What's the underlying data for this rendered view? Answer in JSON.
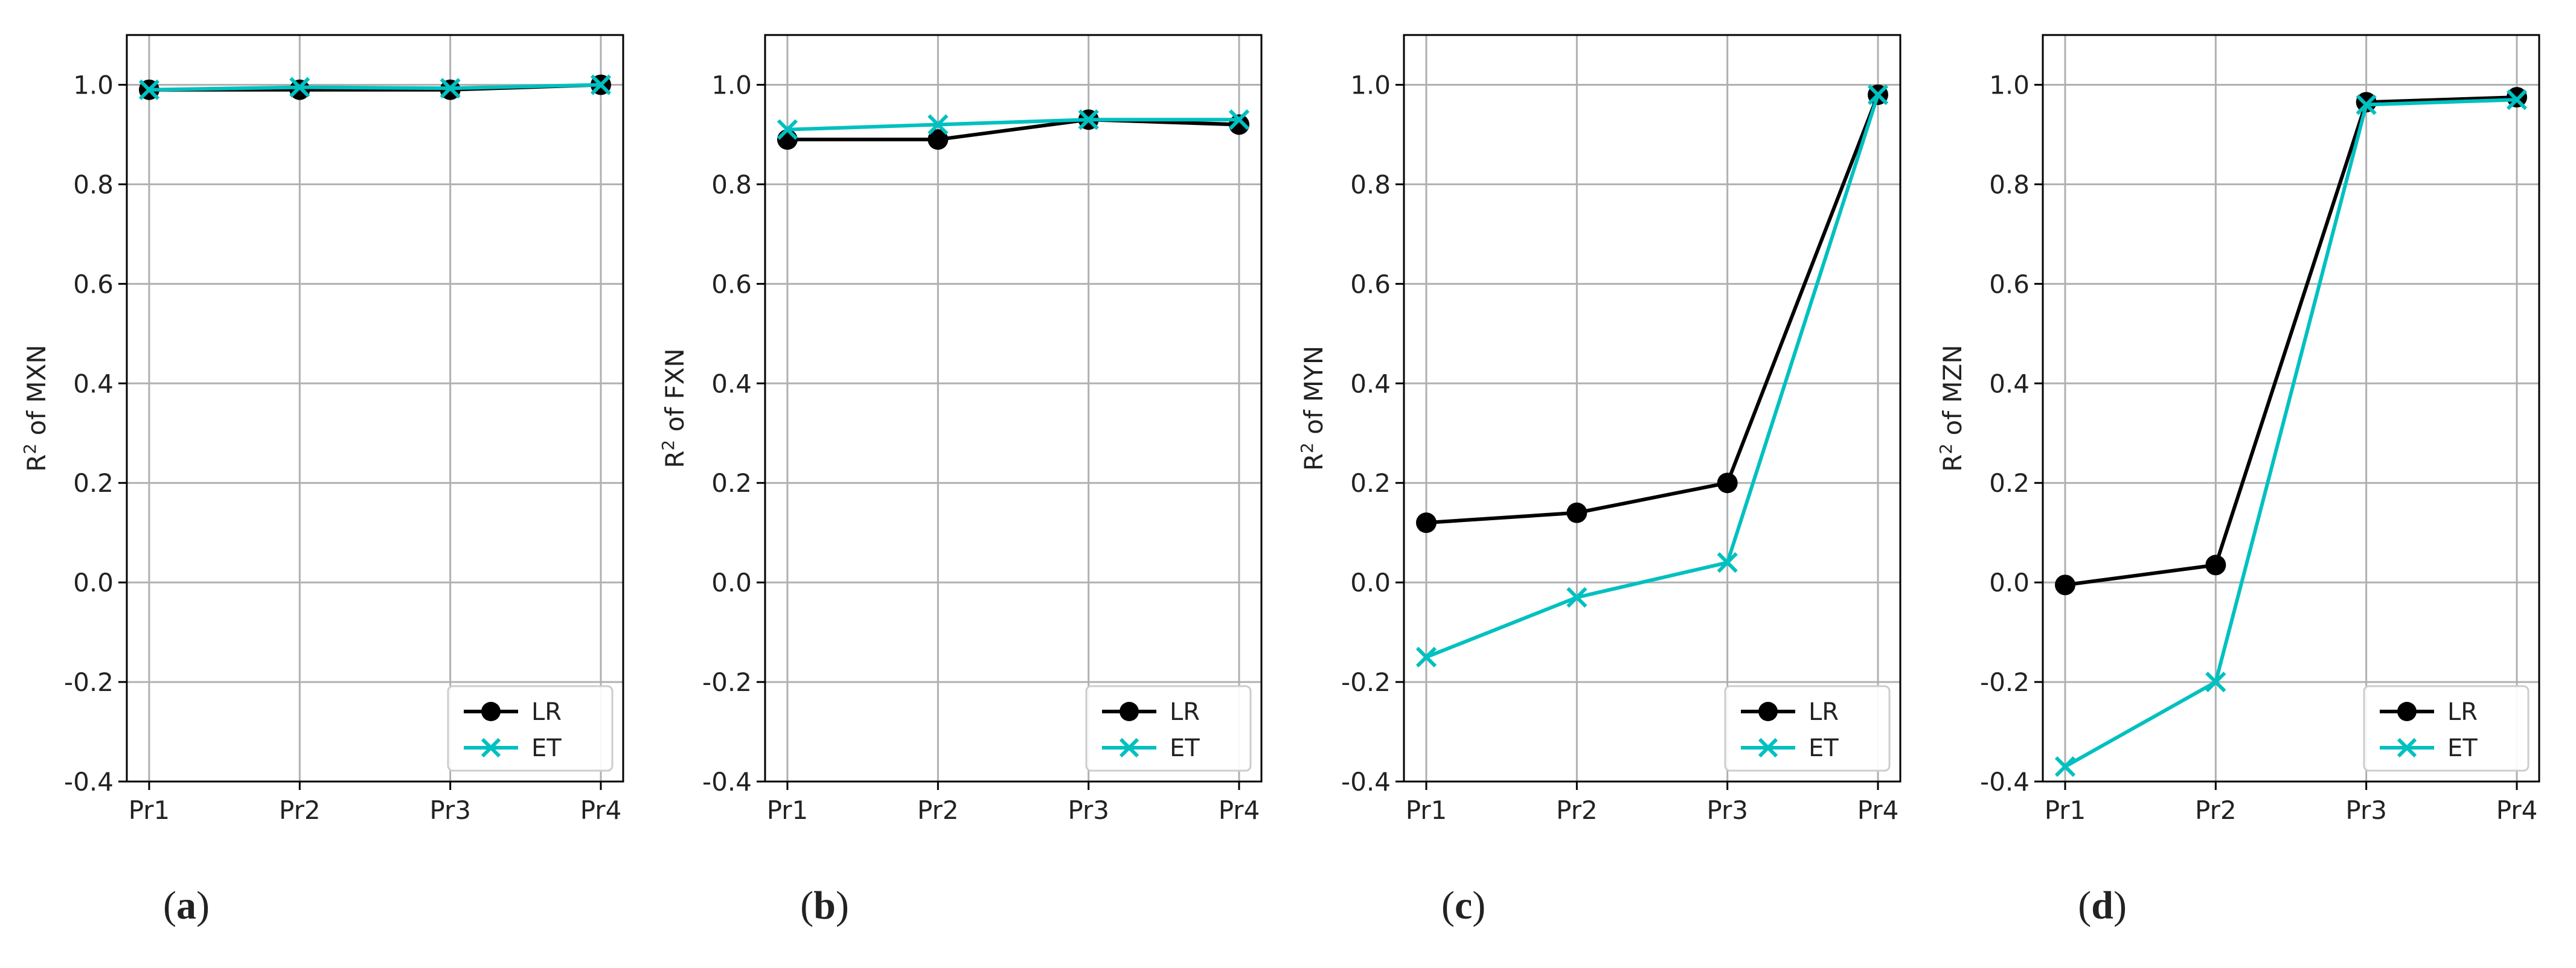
{
  "styles": {
    "LR_color": "#000000",
    "ET_color": "#00c0c0",
    "grid_color": "#b0b0b0",
    "axis_color": "#000000",
    "LR_marker": "circle",
    "ET_marker": "x"
  },
  "chart_data": [
    {
      "type": "line",
      "panel_label": "a",
      "categories": [
        "Pr1",
        "Pr2",
        "Pr3",
        "Pr4"
      ],
      "ylabel_base": "R",
      "ylabel_sup": "2",
      "ylabel_rest": " of MXN",
      "ylim": [
        -0.4,
        1.1
      ],
      "yticks": [
        -0.4,
        -0.2,
        0.0,
        0.2,
        0.4,
        0.6,
        0.8,
        1.0
      ],
      "ytick_labels": [
        "-0.4",
        "-0.2",
        "0.0",
        "0.2",
        "0.4",
        "0.6",
        "0.8",
        "1.0"
      ],
      "grid": true,
      "legend": "lower-right",
      "series": [
        {
          "name": "LR",
          "values": [
            0.99,
            0.99,
            0.99,
            1.0
          ]
        },
        {
          "name": "ET",
          "values": [
            0.99,
            0.995,
            0.993,
            1.0
          ]
        }
      ]
    },
    {
      "type": "line",
      "panel_label": "b",
      "categories": [
        "Pr1",
        "Pr2",
        "Pr3",
        "Pr4"
      ],
      "ylabel_base": "R",
      "ylabel_sup": "2",
      "ylabel_rest": " of FXN",
      "ylim": [
        -0.4,
        1.1
      ],
      "yticks": [
        -0.4,
        -0.2,
        0.0,
        0.2,
        0.4,
        0.6,
        0.8,
        1.0
      ],
      "ytick_labels": [
        "-0.4",
        "-0.2",
        "0.0",
        "0.2",
        "0.4",
        "0.6",
        "0.8",
        "1.0"
      ],
      "grid": true,
      "legend": "lower-right",
      "series": [
        {
          "name": "LR",
          "values": [
            0.89,
            0.89,
            0.93,
            0.92
          ]
        },
        {
          "name": "ET",
          "values": [
            0.91,
            0.92,
            0.93,
            0.93
          ]
        }
      ]
    },
    {
      "type": "line",
      "panel_label": "c",
      "categories": [
        "Pr1",
        "Pr2",
        "Pr3",
        "Pr4"
      ],
      "ylabel_base": "R",
      "ylabel_sup": "2",
      "ylabel_rest": " of MYN",
      "ylim": [
        -0.4,
        1.1
      ],
      "yticks": [
        -0.4,
        -0.2,
        0.0,
        0.2,
        0.4,
        0.6,
        0.8,
        1.0
      ],
      "ytick_labels": [
        "-0.4",
        "-0.2",
        "0.0",
        "0.2",
        "0.4",
        "0.6",
        "0.8",
        "1.0"
      ],
      "grid": true,
      "legend": "lower-right",
      "series": [
        {
          "name": "LR",
          "values": [
            0.12,
            0.14,
            0.2,
            0.98
          ]
        },
        {
          "name": "ET",
          "values": [
            -0.15,
            -0.03,
            0.04,
            0.98
          ]
        }
      ]
    },
    {
      "type": "line",
      "panel_label": "d",
      "categories": [
        "Pr1",
        "Pr2",
        "Pr3",
        "Pr4"
      ],
      "ylabel_base": "R",
      "ylabel_sup": "2",
      "ylabel_rest": " of MZN",
      "ylim": [
        -0.4,
        1.1
      ],
      "yticks": [
        -0.4,
        -0.2,
        0.0,
        0.2,
        0.4,
        0.6,
        0.8,
        1.0
      ],
      "ytick_labels": [
        "-0.4",
        "-0.2",
        "0.0",
        "0.2",
        "0.4",
        "0.6",
        "0.8",
        "1.0"
      ],
      "grid": true,
      "legend": "lower-right",
      "series": [
        {
          "name": "LR",
          "values": [
            -0.005,
            0.035,
            0.965,
            0.975
          ]
        },
        {
          "name": "ET",
          "values": [
            -0.37,
            -0.2,
            0.96,
            0.97
          ]
        }
      ]
    }
  ]
}
